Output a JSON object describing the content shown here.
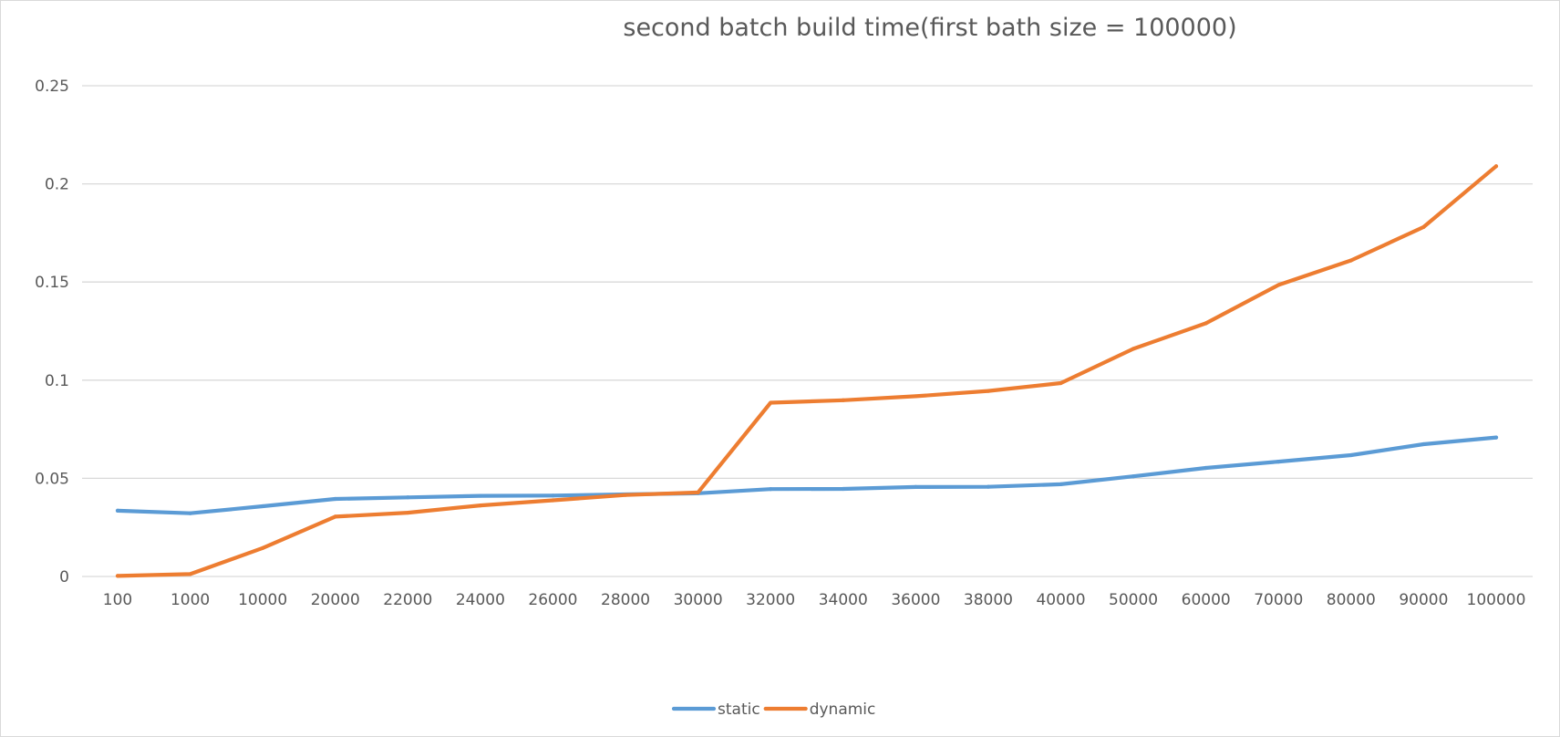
{
  "chart_data": {
    "type": "line",
    "title": "second batch build time(first bath size = 100000)",
    "xlabel": "",
    "ylabel": "",
    "categories": [
      "100",
      "1000",
      "10000",
      "20000",
      "22000",
      "24000",
      "26000",
      "28000",
      "30000",
      "32000",
      "34000",
      "36000",
      "38000",
      "40000",
      "50000",
      "60000",
      "70000",
      "80000",
      "90000",
      "100000"
    ],
    "ylim": [
      0,
      0.25
    ],
    "yticks": [
      0,
      0.05,
      0.1,
      0.15,
      0.2,
      0.25
    ],
    "ytick_labels": [
      "0",
      "0.05",
      "0.1",
      "0.15",
      "0.2",
      "0.25"
    ],
    "grid": true,
    "legend_position": "bottom",
    "series": [
      {
        "name": "static",
        "color": "#5b9bd5",
        "values": [
          0.0335,
          0.0322,
          0.0358,
          0.0395,
          0.0403,
          0.0411,
          0.0412,
          0.0418,
          0.0424,
          0.0445,
          0.0446,
          0.0456,
          0.0457,
          0.047,
          0.051,
          0.0553,
          0.0585,
          0.0618,
          0.0674,
          0.0708
        ]
      },
      {
        "name": "dynamic",
        "color": "#ed7d31",
        "values": [
          0.0003,
          0.0012,
          0.0145,
          0.0305,
          0.0325,
          0.0362,
          0.0388,
          0.0415,
          0.0428,
          0.0885,
          0.0898,
          0.0918,
          0.0945,
          0.0985,
          0.116,
          0.129,
          0.1485,
          0.161,
          0.178,
          0.209
        ]
      }
    ]
  }
}
